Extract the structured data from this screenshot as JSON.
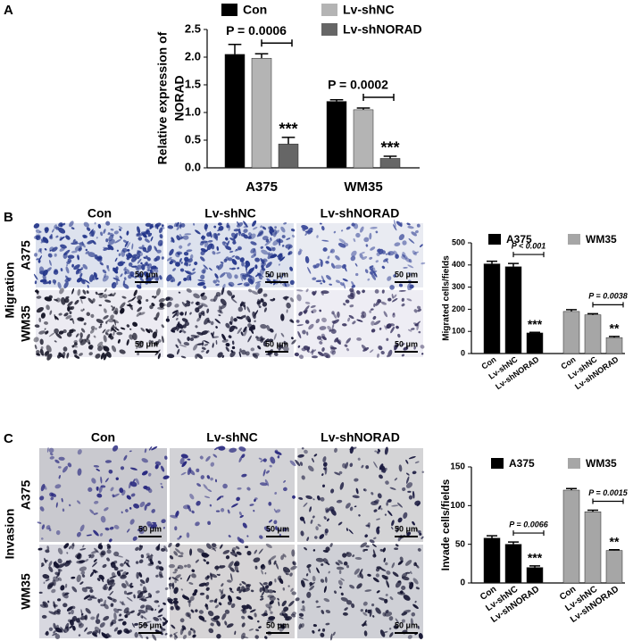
{
  "panel_labels": [
    "A",
    "B",
    "C"
  ],
  "panels": [
    {
      "title": "Migration",
      "columns": [
        "Con",
        "Lv-shNC",
        "Lv-shNORAD"
      ],
      "rows": [
        "A375",
        "WM35"
      ],
      "scale_bar": "50 μm"
    },
    {
      "title": "Invasion",
      "columns": [
        "Con",
        "Lv-shNC",
        "Lv-shNORAD"
      ],
      "rows": [
        "A375",
        "WM35"
      ],
      "scale_bar": "50 μm"
    }
  ],
  "chart_data": [
    {
      "type": "bar",
      "ylabel": [
        "Relative expression of",
        "NORAD"
      ],
      "categories": [
        "A375",
        "WM35"
      ],
      "p_values": [
        "P = 0.0006",
        "P = 0.0002"
      ],
      "series": [
        {
          "name": "Con",
          "color": "#000000",
          "values": [
            2.05,
            1.2
          ],
          "errors": [
            0.18,
            0.03
          ],
          "significance": [
            null,
            null
          ]
        },
        {
          "name": "Lv-shNC",
          "color": "#b4b4b4",
          "values": [
            1.98,
            1.05
          ],
          "errors": [
            0.08,
            0.03
          ],
          "significance": [
            null,
            null
          ]
        },
        {
          "name": "Lv-shNORAD",
          "color": "#666666",
          "values": [
            0.43,
            0.17
          ],
          "errors": [
            0.12,
            0.04
          ],
          "significance": [
            "***",
            "***"
          ]
        }
      ],
      "ylim": [
        0,
        2.5
      ],
      "yticks": [
        {
          "value": 0,
          "label": "0.0"
        },
        0.5,
        {
          "value": 1,
          "label": "1.0"
        },
        1.5,
        {
          "value": 2,
          "label": "2.0"
        },
        2.5
      ]
    },
    {
      "type": "bar",
      "ylabel": "Migrated cells/fields",
      "categories": [
        "Con",
        "Lv-shNC",
        "Lv-shNORAD"
      ],
      "series": [
        {
          "name": "A375",
          "color": "#000000",
          "values": [
            405,
            392,
            93
          ],
          "errors": [
            12,
            15,
            3
          ],
          "significance": [
            null,
            null,
            "***"
          ],
          "p_value": "P < 0.001"
        },
        {
          "name": "WM35",
          "color": "#a6a6a6",
          "values": [
            190,
            175,
            72
          ],
          "errors": [
            8,
            5,
            5
          ],
          "significance": [
            null,
            null,
            "**"
          ],
          "p_value": "P = 0.0038"
        }
      ],
      "ylim": [
        0,
        500
      ],
      "yticks": [
        0,
        100,
        200,
        300,
        400,
        500
      ]
    },
    {
      "type": "bar",
      "ylabel": "Invade cells/fields",
      "categories": [
        "Con",
        "Lv-shNC",
        "Lv-shNORAD"
      ],
      "series": [
        {
          "name": "A375",
          "color": "#000000",
          "values": [
            58,
            50,
            20
          ],
          "errors": [
            3,
            3,
            2
          ],
          "significance": [
            null,
            null,
            "***"
          ],
          "p_value": "P = 0.0066"
        },
        {
          "name": "WM35",
          "color": "#a6a6a6",
          "values": [
            120,
            92,
            42
          ],
          "errors": [
            2,
            2,
            1
          ],
          "significance": [
            null,
            null,
            "**"
          ],
          "p_value": "P = 0.0015"
        }
      ],
      "ylim": [
        0,
        150
      ],
      "yticks": [
        0,
        50,
        100,
        150
      ]
    }
  ]
}
